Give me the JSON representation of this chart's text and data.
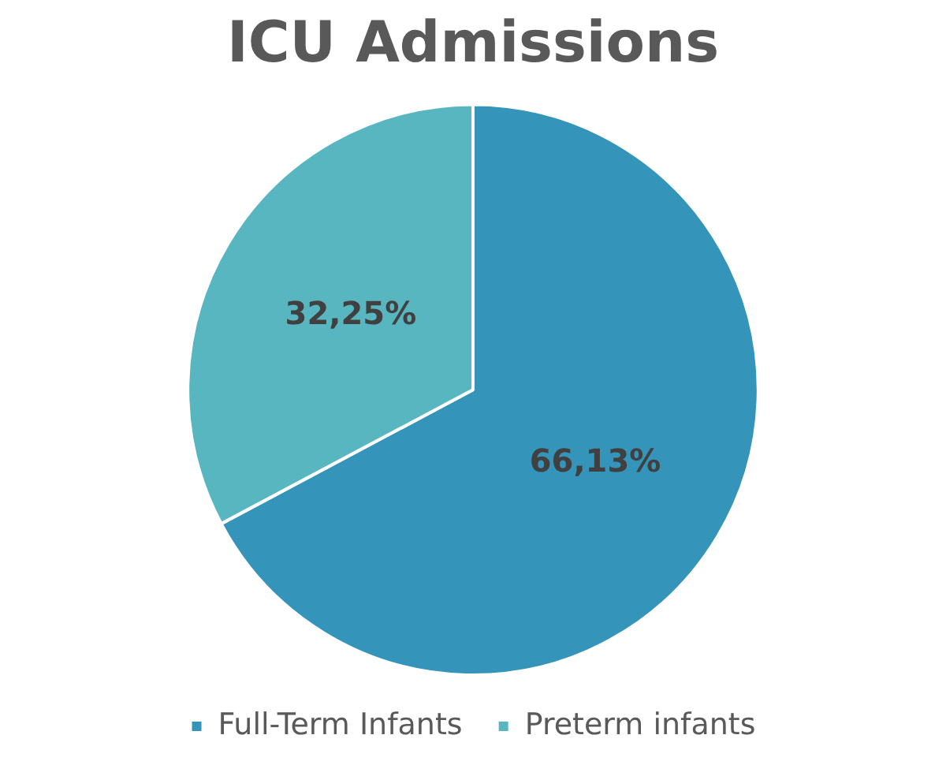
{
  "chart_data": {
    "type": "pie",
    "title": "ICU Admissions",
    "categories": [
      "Full-Term Infants",
      "Preterm infants"
    ],
    "values": [
      66.13,
      32.25
    ],
    "colors": [
      "#3494ba",
      "#58b6c0"
    ],
    "value_labels": [
      "66,13%",
      "32,25%"
    ],
    "legend": "bottom"
  }
}
